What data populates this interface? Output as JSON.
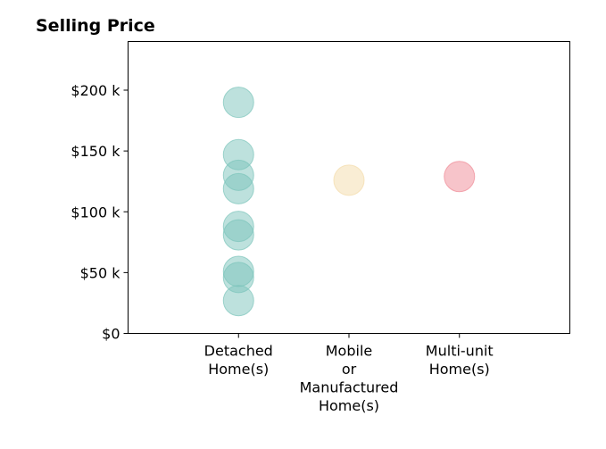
{
  "chart_data": {
    "type": "scatter",
    "title": "Selling Price",
    "xlabel": "",
    "ylabel": "",
    "categories": [
      [
        "Detached",
        "Home(s)"
      ],
      [
        "Mobile",
        "or",
        "Manufactured",
        "Home(s)"
      ],
      [
        "Multi-unit",
        "Home(s)"
      ]
    ],
    "xlim": [
      -1,
      3
    ],
    "ylim": [
      0,
      240000
    ],
    "yticks": [
      {
        "value": 0,
        "label": "$0"
      },
      {
        "value": 50000,
        "label": "$50 k"
      },
      {
        "value": 100000,
        "label": "$100 k"
      },
      {
        "value": 150000,
        "label": "$150 k"
      },
      {
        "value": 200000,
        "label": "$200 k"
      }
    ],
    "grid": false,
    "series": [
      {
        "category_index": 0,
        "color": "#7cc4bb",
        "values": [
          190000,
          147000,
          130000,
          119000,
          88000,
          81000,
          51000,
          46000,
          27000
        ]
      },
      {
        "category_index": 1,
        "color": "#f3dcaa",
        "values": [
          126000
        ]
      },
      {
        "category_index": 2,
        "color": "#f08a96",
        "values": [
          129000
        ]
      }
    ]
  }
}
